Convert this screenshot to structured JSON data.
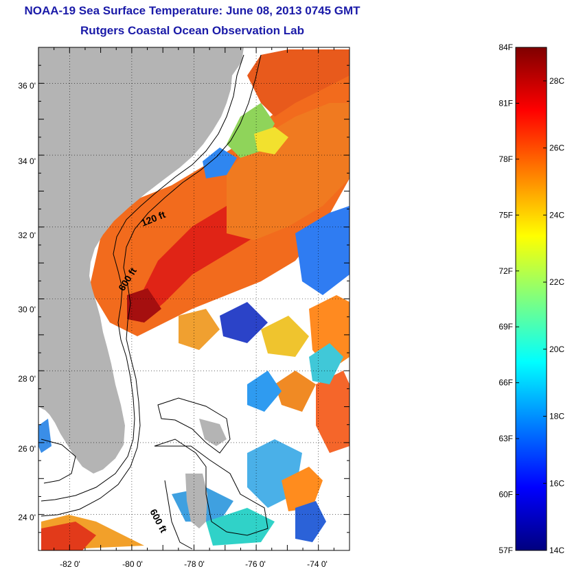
{
  "header": {
    "title": "NOAA-19 Sea Surface Temperature:  June 08, 2013 0745 GMT",
    "subtitle": "Rutgers Coastal Ocean Observation Lab"
  },
  "map": {
    "lat_ticks": [
      "36 0'",
      "34 0'",
      "32 0'",
      "30 0'",
      "28 0'",
      "26 0'",
      "24 0'"
    ],
    "lon_ticks": [
      "-82 0'",
      "-80 0'",
      "-78 0'",
      "-76 0'",
      "-74 0'"
    ],
    "lat_range": [
      23,
      37
    ],
    "lon_range": [
      -83,
      -73
    ],
    "contour_labels": [
      "120 ft",
      "600 ft",
      "600 ft"
    ],
    "colors": {
      "land": "#b4b4b4",
      "no_data": "#ffffff"
    }
  },
  "colorbar": {
    "fahrenheit_labels": [
      "84F",
      "81F",
      "78F",
      "75F",
      "72F",
      "69F",
      "66F",
      "63F",
      "60F",
      "57F"
    ],
    "celsius_labels": [
      "28C",
      "26C",
      "24C",
      "22C",
      "20C",
      "18C",
      "16C",
      "14C"
    ],
    "range_f": [
      57,
      84
    ],
    "range_c": [
      14,
      29
    ],
    "gradient": [
      "#00007f",
      "#0000ff",
      "#007fff",
      "#00ffff",
      "#7fff7f",
      "#ffff00",
      "#ff7f00",
      "#ff0000",
      "#7f0000"
    ]
  }
}
